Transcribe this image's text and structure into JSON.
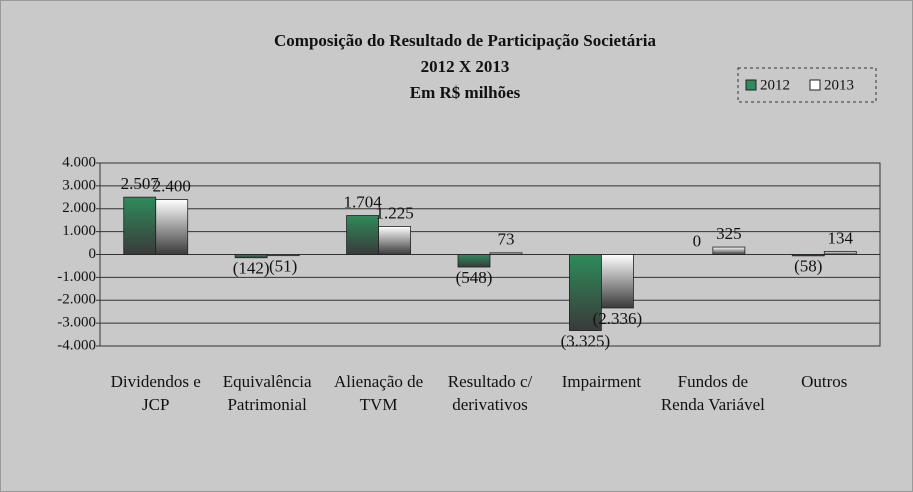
{
  "chart_data": {
    "type": "bar",
    "title": "Composição do Resultado de Participação Societária",
    "subtitle": "2012 X 2013",
    "unit_label": "Em R$ milhões",
    "categories": [
      "Dividendos e JCP",
      "Equivalência Patrimonial",
      "Alienação de TVM",
      "Resultado c/ derivativos",
      "Impairment",
      "Fundos de Renda Variável",
      "Outros"
    ],
    "series": [
      {
        "name": "2012",
        "color": "#2e8b5a",
        "values": [
          2507,
          -142,
          1704,
          -548,
          -3325,
          0,
          -58
        ],
        "value_labels": [
          "2.507",
          "(142)",
          "1.704",
          "(548)",
          "(3.325)",
          "0",
          "(58)"
        ]
      },
      {
        "name": "2013",
        "color": "#ffffff",
        "values": [
          2400,
          -51,
          1225,
          73,
          -2336,
          325,
          134
        ],
        "value_labels": [
          "2.400",
          "(51)",
          "1.225",
          "73",
          "(2.336)",
          "325",
          "134"
        ]
      }
    ],
    "ylim": [
      -4000,
      4000
    ],
    "yticks": [
      {
        "value": -4000,
        "label": "-4.000"
      },
      {
        "value": -3000,
        "label": "-3.000"
      },
      {
        "value": -2000,
        "label": "-2.000"
      },
      {
        "value": -1000,
        "label": "-1.000"
      },
      0,
      {
        "value": 1000,
        "label": "1.000"
      },
      {
        "value": 2000,
        "label": "2.000"
      },
      {
        "value": 3000,
        "label": "3.000"
      },
      {
        "value": 4000,
        "label": "4.000"
      }
    ],
    "grid": true,
    "legend": "upper right"
  }
}
